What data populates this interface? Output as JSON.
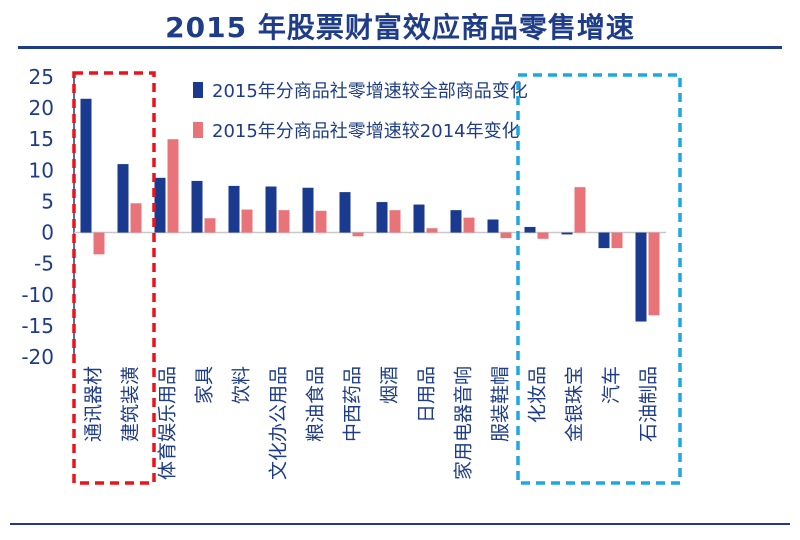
{
  "chart_data": {
    "type": "bar",
    "title": "2015 年股票财富效应商品零售增速",
    "categories": [
      "通讯器材",
      "建筑装潢",
      "体育娱乐用品",
      "家具",
      "饮料",
      "文化办公用品",
      "粮油食品",
      "中西药品",
      "烟酒",
      "日用品",
      "家用电器音响",
      "服装鞋帽",
      "化妆品",
      "金银珠宝",
      "汽车",
      "石油制品"
    ],
    "series": [
      {
        "name": "2015年分商品社零增速较全部商品变化",
        "color": "#1a3a8f",
        "values": [
          21.5,
          11,
          8.8,
          8.3,
          7.5,
          7.4,
          7.2,
          6.5,
          4.9,
          4.5,
          3.6,
          2.1,
          0.9,
          -0.3,
          -2.5,
          -14.3
        ]
      },
      {
        "name": "2015年分商品社零增速较2014年变化",
        "color": "#e8747a",
        "values": [
          -3.5,
          4.7,
          15,
          2.3,
          3.7,
          3.6,
          3.5,
          -0.6,
          3.6,
          0.7,
          2.4,
          -0.9,
          -1,
          7.3,
          -2.5,
          -13.3
        ]
      }
    ],
    "ylim": [
      -20,
      25
    ],
    "yticks": [
      25,
      20,
      15,
      10,
      5,
      0,
      -5,
      -10,
      -15,
      -20
    ],
    "xlabel": "",
    "ylabel": "",
    "grid": false,
    "legend_position": "top",
    "highlight_boxes": [
      {
        "color": "#e8141c",
        "categories": [
          "通讯器材",
          "建筑装潢"
        ]
      },
      {
        "color": "#1ea7e0",
        "categories": [
          "化妆品",
          "金银珠宝",
          "汽车",
          "石油制品"
        ]
      }
    ]
  }
}
